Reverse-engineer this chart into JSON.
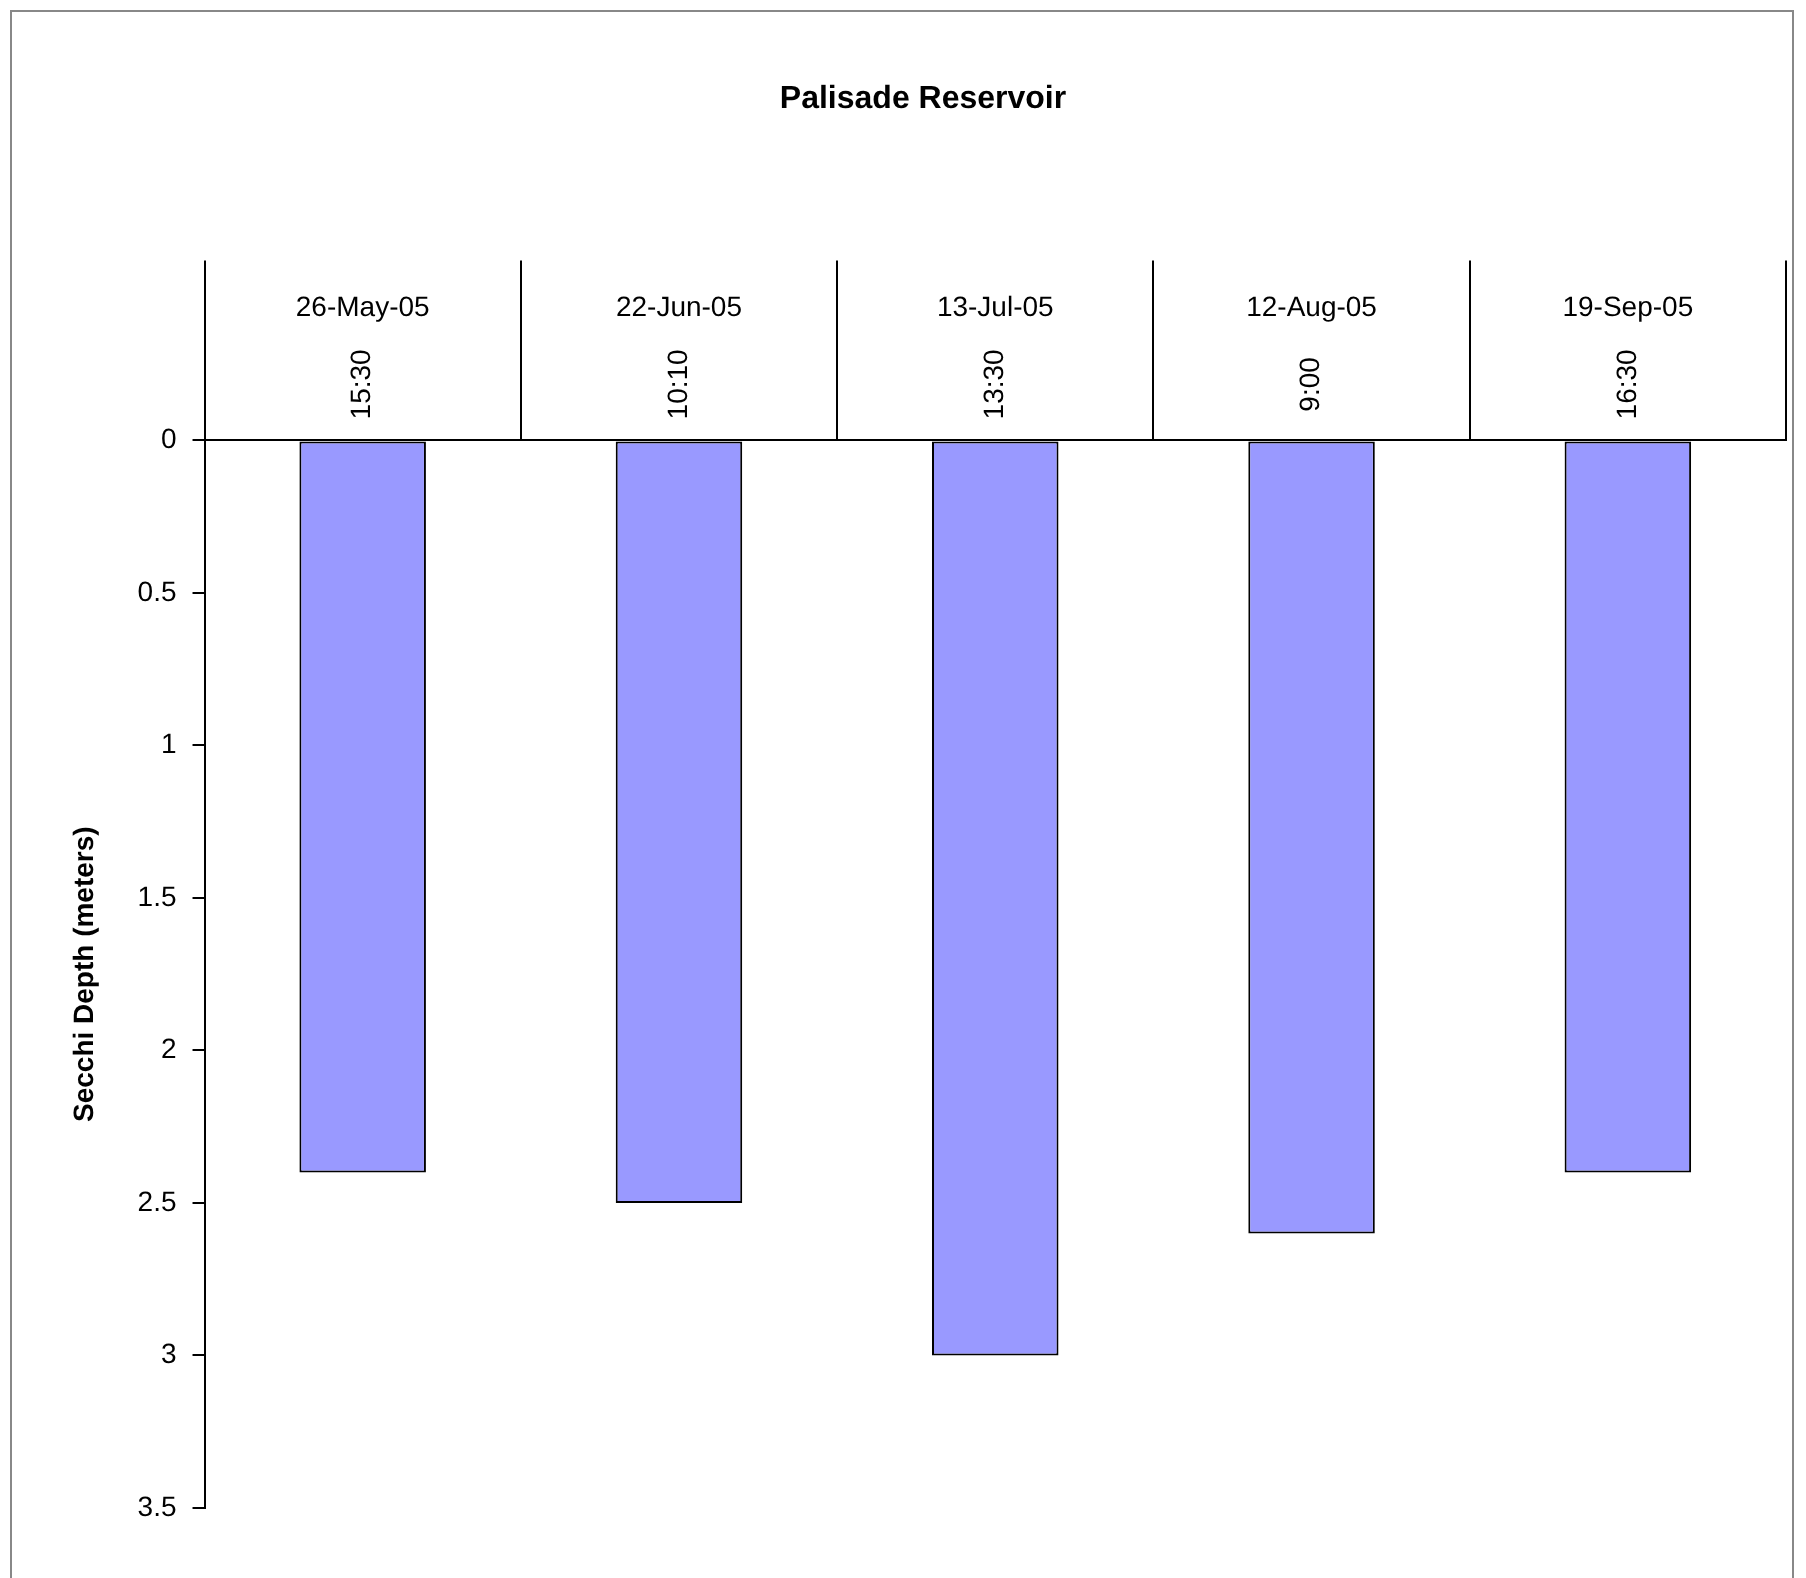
{
  "chart_data": {
    "type": "bar",
    "title": "Palisade Reservoir",
    "ylabel": "Secchi Depth (meters)",
    "categories": [
      "26-May-05\n15:30",
      "22-Jun-05\n10:10",
      "13-Jul-05\n13:30",
      "12-Aug-05\n9:00",
      "19-Sep-05\n16:30"
    ],
    "values": [
      2.4,
      2.5,
      3.0,
      2.6,
      2.4
    ],
    "color": "#9999ff",
    "ylim": [
      3.5,
      0
    ],
    "yticks": [
      0,
      0.5,
      1,
      1.5,
      2,
      2.5,
      3,
      3.5
    ],
    "grid": false,
    "legend": false
  }
}
